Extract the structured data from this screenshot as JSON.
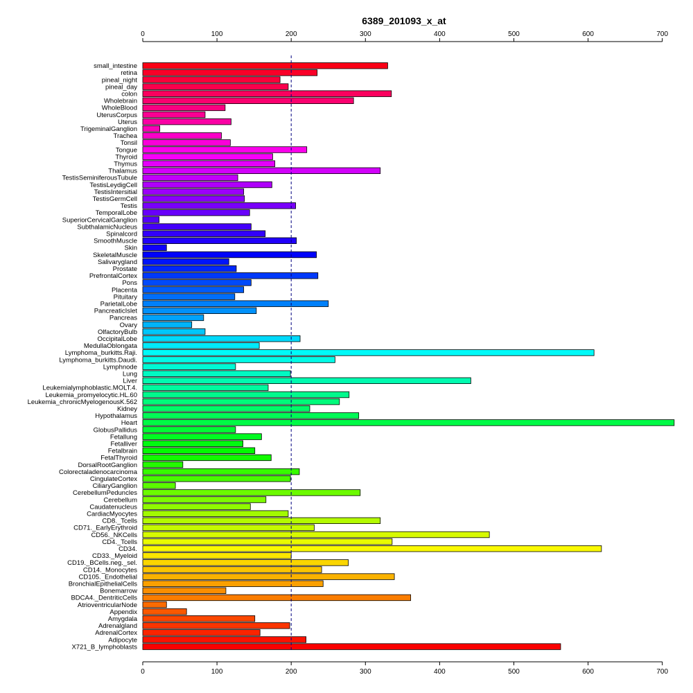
{
  "chart_data": {
    "type": "bar",
    "orientation": "horizontal",
    "title": "6389_201093_x_at",
    "xlabel": "",
    "ylabel": "",
    "xlim": [
      0,
      700
    ],
    "xticks": [
      0,
      100,
      200,
      300,
      400,
      500,
      600,
      700
    ],
    "reference_line": 200,
    "axes": "top-and-bottom",
    "grid": false,
    "legend": "none",
    "categories": [
      "small_intestine",
      "retina",
      "pineal_night",
      "pineal_day",
      "colon",
      "Wholebrain",
      "WholeBlood",
      "UterusCorpus",
      "Uterus",
      "TrigeminalGanglion",
      "Trachea",
      "Tonsil",
      "Tongue",
      "Thyroid",
      "Thymus",
      "Thalamus",
      "TestisSeminiferousTubule",
      "TestisLeydigCell",
      "TestisIntersitial",
      "TestisGermCell",
      "Testis",
      "TemporalLobe",
      "SuperiorCervicalGanglion",
      "SubthalamicNucleus",
      "Spinalcord",
      "SmoothMuscle",
      "Skin",
      "SkeletalMuscle",
      "Salivarygland",
      "Prostate",
      "PrefrontalCortex",
      "Pons",
      "Placenta",
      "Pituitary",
      "ParietalLobe",
      "PancreaticIslet",
      "Pancreas",
      "Ovary",
      "OlfactoryBulb",
      "OccipitalLobe",
      "MedullaOblongata",
      "Lymphoma_burkitts.Raji.",
      "Lymphoma_burkitts.Daudi.",
      "Lymphnode",
      "Lung",
      "Liver",
      "Leukemialymphoblastic.MOLT.4.",
      "Leukemia_promyelocytic.HL.60",
      "Leukemia_chronicMyelogenousK.562",
      "Kidney",
      "Hypothalamus",
      "Heart",
      "GlobusPallidus",
      "Fetallung",
      "Fetalliver",
      "Fetalbrain",
      "FetalThyroid",
      "DorsalRootGanglion",
      "Colorectaladenocarcinoma",
      "CingulateCortex",
      "CiliaryGanglion",
      "CerebellumPeduncles",
      "Cerebellum",
      "Caudatenucleus",
      "CardiacMyocytes",
      "CD8._Tcells",
      "CD71._EarlyErythroid",
      "CD56._NKCells",
      "CD4._Tcells",
      "CD34.",
      "CD33._Myeloid",
      "CD19._BCells.neg._sel.",
      "CD14._Monocytes",
      "CD105._Endothelial",
      "BronchialEpithelialCells",
      "Bonemarrow",
      "BDCA4._DentriticCells",
      "AtrioventricularNode",
      "Appendix",
      "Amygdala",
      "Adrenalgland",
      "AdrenalCortex",
      "Adipocyte",
      "X721_B_lymphoblasts"
    ],
    "values": [
      330,
      235,
      185,
      196,
      335,
      284,
      111,
      84,
      119,
      23,
      106,
      118,
      221,
      175,
      178,
      320,
      128,
      174,
      136,
      137,
      206,
      144,
      22,
      146,
      165,
      207,
      32,
      234,
      116,
      126,
      236,
      146,
      136,
      124,
      250,
      153,
      82,
      66,
      84,
      212,
      157,
      608,
      259,
      125,
      199,
      442,
      169,
      278,
      265,
      225,
      291,
      716,
      125,
      160,
      135,
      151,
      173,
      54,
      211,
      199,
      44,
      293,
      166,
      145,
      196,
      320,
      231,
      467,
      336,
      618,
      200,
      277,
      241,
      339,
      243,
      112,
      361,
      32,
      59,
      151,
      198,
      158,
      220,
      563
    ]
  }
}
